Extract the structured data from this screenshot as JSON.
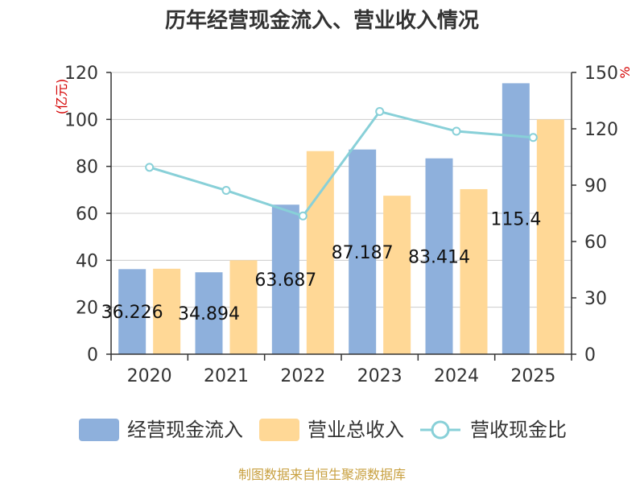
{
  "chart_data": {
    "type": "bar",
    "title": "历年经营现金流入、营业收入情况",
    "categories": [
      "2020",
      "2021",
      "2022",
      "2023",
      "2024",
      "2025"
    ],
    "left_axis": {
      "unit": "(亿元)",
      "ylim": [
        0,
        120
      ],
      "ticks": [
        0,
        20,
        40,
        60,
        80,
        100,
        120
      ]
    },
    "right_axis": {
      "unit": "%",
      "ylim": [
        0,
        150
      ],
      "ticks": [
        0,
        30,
        60,
        90,
        120,
        150
      ]
    },
    "series": [
      {
        "name": "经营现金流入",
        "type": "bar",
        "axis": "left",
        "color": "#8eb0dc",
        "values": [
          36.226,
          34.894,
          63.687,
          87.187,
          83.414,
          115.4
        ],
        "labels": [
          "36.226",
          "34.894",
          "63.687",
          "87.187",
          "83.414",
          "115.4"
        ]
      },
      {
        "name": "营业总收入",
        "type": "bar",
        "axis": "left",
        "color": "#ffd896",
        "values": [
          36.4,
          40.0,
          86.5,
          67.5,
          70.3,
          100.0
        ]
      },
      {
        "name": "营收现金比",
        "type": "line",
        "axis": "right",
        "color": "#88d0d8",
        "values": [
          99.5,
          87.2,
          73.6,
          129.2,
          118.7,
          115.4
        ]
      }
    ],
    "legend_position": "bottom",
    "grid": true
  },
  "footer": {
    "source": "制图数据来自恒生聚源数据库"
  }
}
